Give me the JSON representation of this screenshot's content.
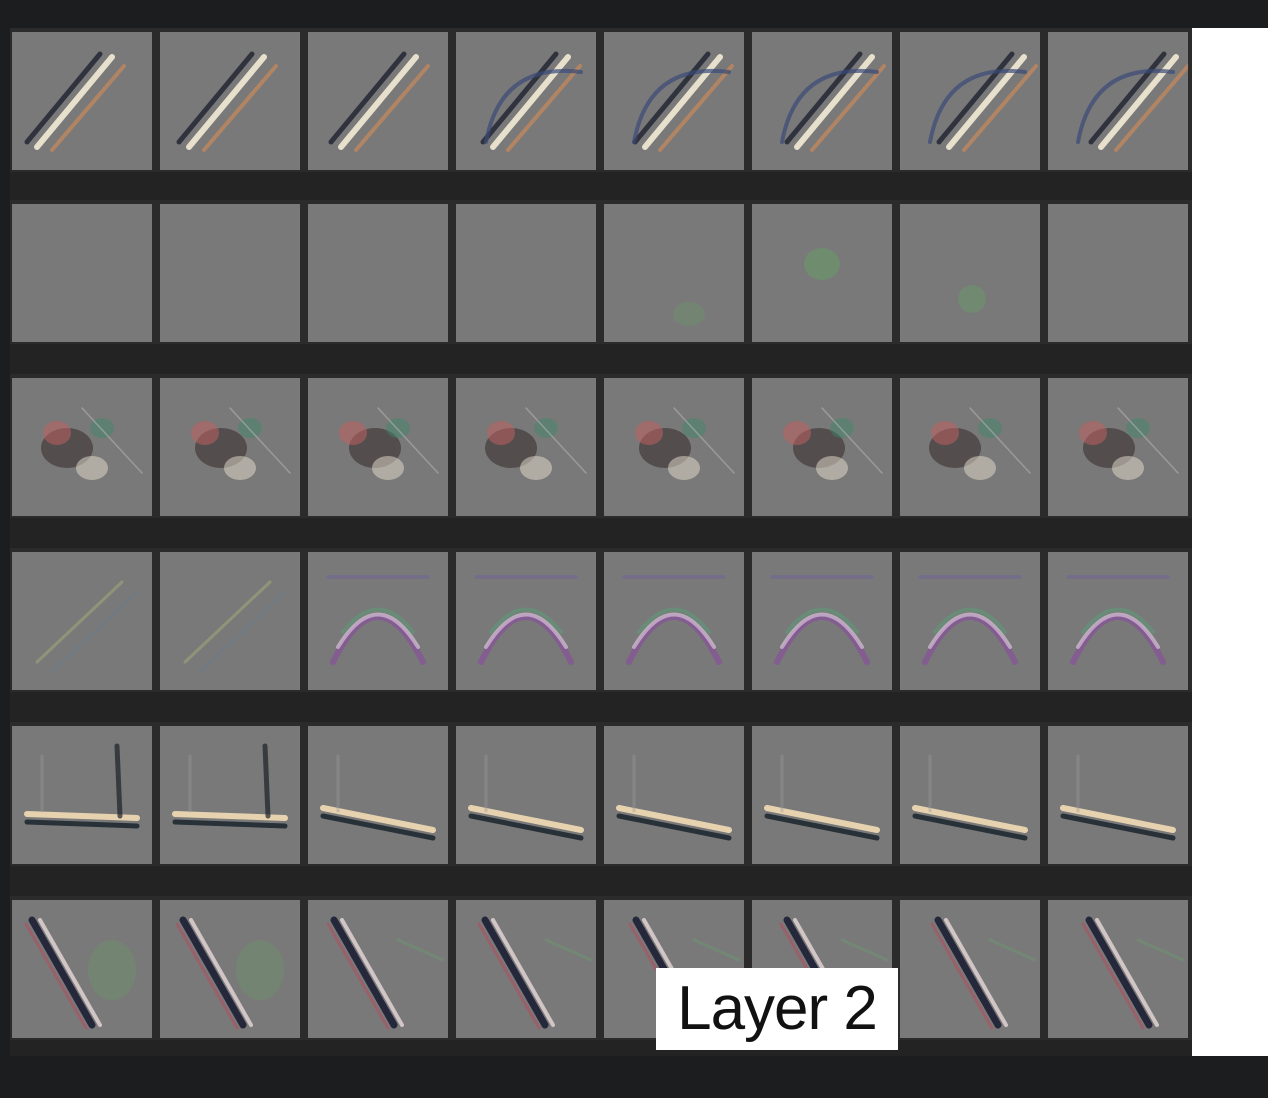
{
  "figure": {
    "label": "Layer 2",
    "grid": {
      "rows": 6,
      "cols": 8
    },
    "tile_background": "#797979",
    "separator_color": "#262626",
    "row_patterns": [
      "diagonal-lines",
      "flat-gray",
      "textured-blobs",
      "arc-curves",
      "horizontal-bars",
      "steep-diagonal-lines"
    ]
  }
}
